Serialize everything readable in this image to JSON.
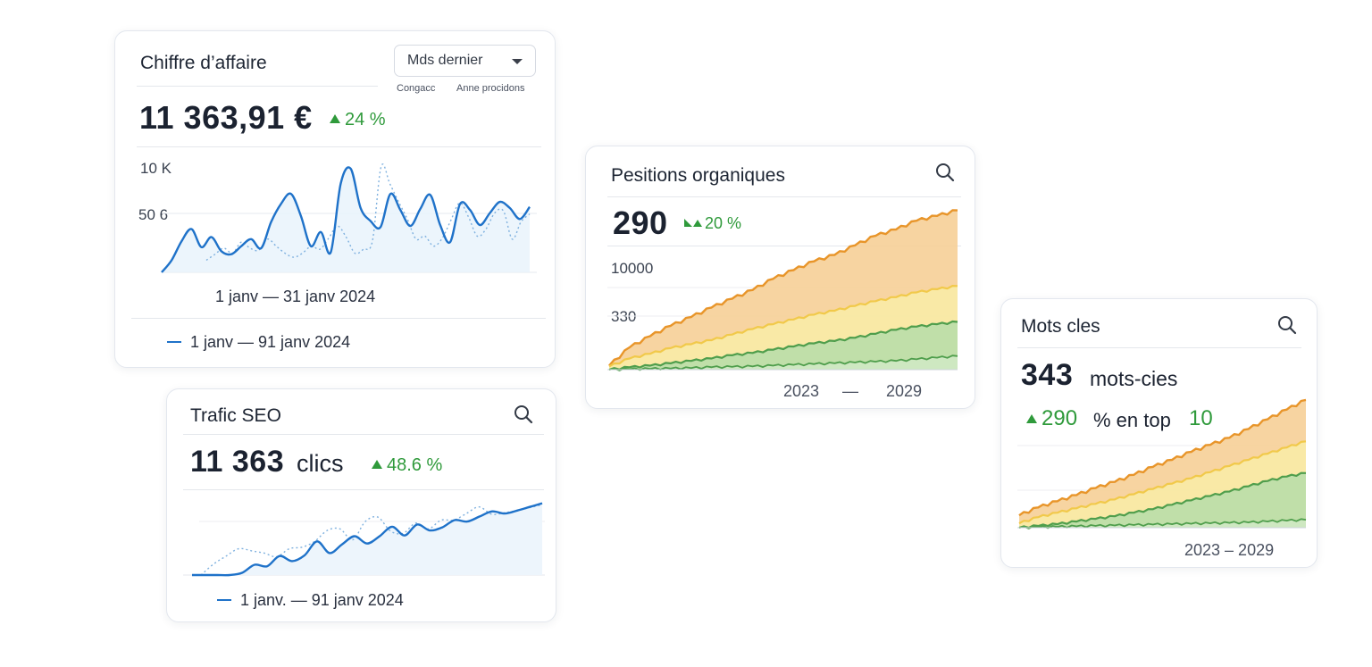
{
  "colors": {
    "primary_blue": "#1f72c9",
    "trend_green": "#2f9a3b",
    "orange": "#e8952a",
    "yellow": "#f1c94a",
    "green_series": "#4f9e4c",
    "text_dark": "#1b2230"
  },
  "cards": {
    "revenue": {
      "title": "Chiffre d’affaire",
      "dropdown_label": "Mds dernier",
      "dropdown_icon": "chevron-down-icon",
      "sub_left": "Congacc",
      "sub_right": "Anne procidons",
      "value": "11 363,91 €",
      "trend": "24 %",
      "y_ticks": [
        "10 K",
        "50 6"
      ],
      "date_range": "1 janv  —  31 janv  2024",
      "legend": "1 janv — 91 janv  2024"
    },
    "seo": {
      "title": "Trafic SEO",
      "search_icon": "search-icon",
      "value": "11 363",
      "value_unit": "clics",
      "trend": "48.6 %",
      "legend": "1 janv. — 91 janv  2024"
    },
    "positions": {
      "title": "Pesitions organiques",
      "search_icon": "search-icon",
      "value": "290",
      "trend": "20 %",
      "y_ticks": [
        "10000",
        "330"
      ],
      "x_start": "2023",
      "x_sep": "—",
      "x_end": "2029"
    },
    "keywords": {
      "title": "Mots cles",
      "search_icon": "search-icon",
      "value": "343",
      "value_unit": "mots-cies",
      "trend_value": "290",
      "trend_text1": "% en top",
      "trend_value2": "10",
      "x_range": "2023 – 2029"
    }
  },
  "chart_data": [
    {
      "type": "line",
      "card": "revenue",
      "title": "",
      "y_ticks": [
        "10 K",
        "50 6"
      ],
      "ylim": [
        0,
        11000
      ],
      "x_label": "1 janv — 31 janv 2024",
      "series": [
        {
          "values": [
            0,
            1200,
            3100,
            4300,
            2500,
            3500,
            2100,
            1800,
            2600,
            3300,
            2400,
            5000,
            6800,
            7800,
            5600,
            2600,
            4000,
            2000,
            8800,
            10300,
            6400,
            5100,
            4500,
            7800,
            6200,
            4600,
            6300,
            7700,
            4700,
            3000,
            6800,
            6200,
            4700,
            5900,
            7000,
            6400,
            5300,
            6500
          ]
        },
        {
          "values": [
            1200,
            1800,
            2400,
            1900,
            3000,
            2400,
            2200,
            3300,
            2600,
            1900,
            1500,
            1900,
            2600,
            2300,
            3400,
            4600,
            3500,
            1900,
            2300,
            3100,
            10500,
            8800,
            7000,
            5300,
            3300,
            3600,
            2600,
            3400,
            5200,
            6900,
            5500,
            3600,
            4300,
            5900,
            6100,
            3300,
            5000,
            5800
          ]
        }
      ]
    },
    {
      "type": "line",
      "card": "seo",
      "title": "",
      "series": [
        {
          "values": [
            0,
            0,
            0,
            0,
            300,
            1400,
            1200,
            2600,
            1900,
            2700,
            4600,
            3000,
            4200,
            5300,
            4300,
            5300,
            6600,
            5400,
            6900,
            6100,
            6500,
            7500,
            7300,
            8000,
            8700,
            8400,
            8800,
            9300,
            9800
          ]
        },
        {
          "values": [
            0,
            1500,
            2600,
            3600,
            3300,
            3000,
            2500,
            3600,
            3800,
            4600,
            6100,
            6300,
            4800,
            7300,
            7900,
            6000,
            5700,
            7100,
            6300,
            7500,
            7500,
            8400,
            9300,
            8300,
            8500,
            8800,
            9200,
            9600
          ]
        }
      ]
    },
    {
      "type": "area",
      "card": "positions",
      "title": "",
      "y_ticks": [
        "10000",
        "330"
      ],
      "x_ticks": [
        "2023",
        "2029"
      ],
      "series": [
        {
          "values": [
            500,
            2800,
            4200,
            5500,
            6600,
            7800,
            8900,
            10000,
            11400,
            12500,
            13600,
            14400,
            15600,
            16800,
            17600,
            18700,
            19300,
            20000
          ]
        },
        {
          "values": [
            400,
            1400,
            2000,
            2700,
            3200,
            3700,
            4400,
            5100,
            5700,
            6300,
            6900,
            7400,
            8000,
            8600,
            9100,
            9700,
            10100,
            10500
          ]
        },
        {
          "values": [
            0,
            300,
            500,
            800,
            1100,
            1400,
            1800,
            2100,
            2500,
            2900,
            3300,
            3600,
            4000,
            4500,
            5000,
            5400,
            5700,
            6000
          ]
        },
        {
          "values": [
            0,
            50,
            100,
            150,
            200,
            300,
            350,
            400,
            500,
            600,
            700,
            800,
            900,
            1000,
            1100,
            1300,
            1500,
            1700
          ]
        }
      ]
    },
    {
      "type": "area",
      "card": "keywords",
      "title": "",
      "x_label": "2023 – 2029",
      "series": [
        {
          "values": [
            1400,
            2300,
            3000,
            3700,
            4500,
            5200,
            6000,
            6900,
            7700,
            8600,
            9400,
            10200,
            11200,
            12300,
            13400,
            14500
          ]
        },
        {
          "values": [
            500,
            1200,
            1700,
            2200,
            2700,
            3200,
            3800,
            4400,
            5000,
            5600,
            6300,
            7000,
            7700,
            8400,
            9100,
            9800
          ]
        },
        {
          "values": [
            0,
            200,
            400,
            700,
            1000,
            1300,
            1700,
            2100,
            2600,
            3100,
            3600,
            4100,
            4700,
            5300,
            5800,
            6200
          ]
        },
        {
          "values": [
            0,
            50,
            100,
            150,
            200,
            250,
            300,
            350,
            400,
            450,
            500,
            550,
            600,
            700,
            800,
            900
          ]
        }
      ]
    }
  ]
}
